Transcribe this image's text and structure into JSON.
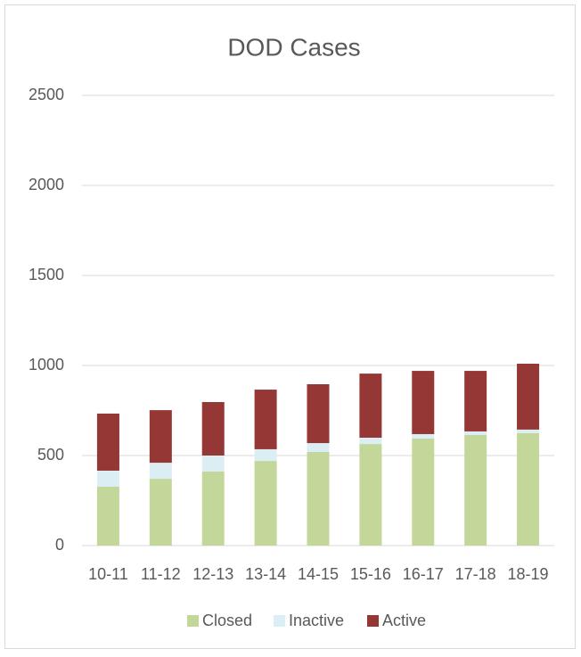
{
  "chart_data": {
    "type": "stacked_bar",
    "title": "DOD Cases",
    "categories": [
      "10-11",
      "11-12",
      "12-13",
      "13-14",
      "14-15",
      "15-16",
      "16-17",
      "17-18",
      "18-19"
    ],
    "series": [
      {
        "name": "Closed",
        "color": "#c4d79b",
        "values": [
          327,
          371,
          411,
          470,
          520,
          564,
          594,
          614,
          624
        ]
      },
      {
        "name": "Inactive",
        "color": "#dbeef4",
        "values": [
          89,
          89,
          89,
          65,
          49,
          35,
          25,
          20,
          20
        ]
      },
      {
        "name": "Active",
        "color": "#953735",
        "values": [
          317,
          292,
          297,
          331,
          327,
          356,
          351,
          336,
          366
        ]
      }
    ],
    "ylim": [
      0,
      2500
    ],
    "yticks": [
      0,
      500,
      1000,
      1500,
      2000,
      2500
    ],
    "grid": true,
    "legend": "bottom"
  }
}
